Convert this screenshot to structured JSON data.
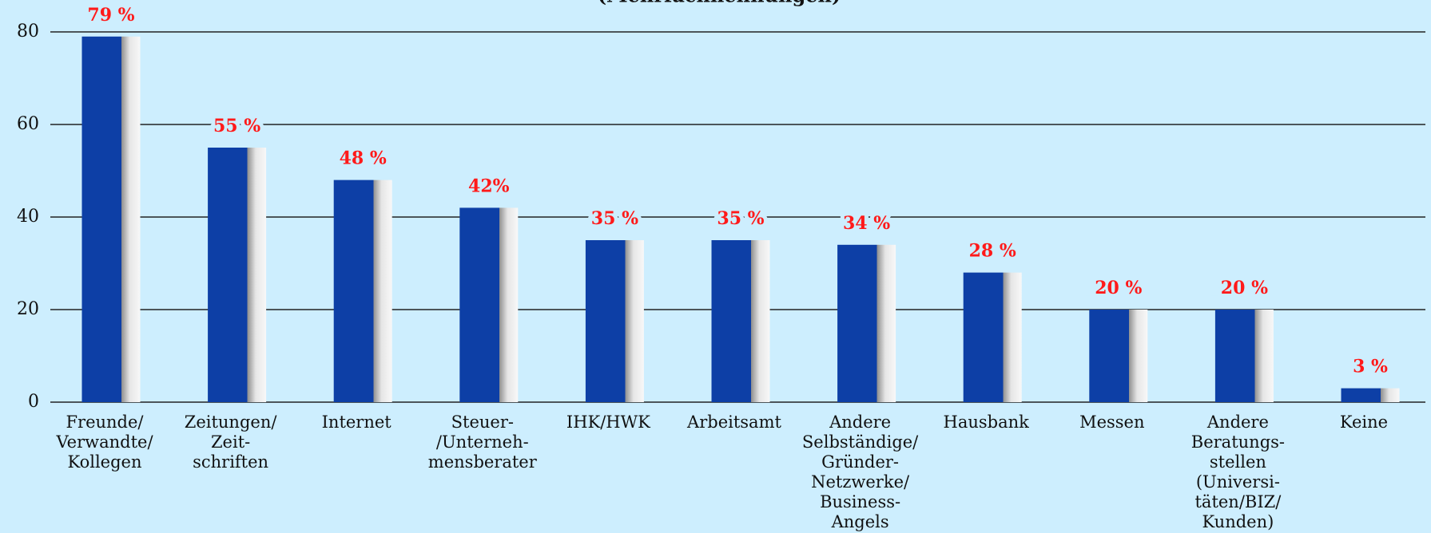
{
  "chart_data": {
    "type": "bar",
    "subtitle": "(Mehrfachnennungen)",
    "categories": [
      "Freunde/\nVerwandte/\nKollegen",
      "Zeitungen/\nZeit-\nschriften",
      "Internet",
      "Steuer-\n/Unterneh-\nmensberater",
      "IHK/HWK",
      "Arbeitsamt",
      "Andere\nSelbständige/\nGründer-\nNetzwerke/\nBusiness-\nAngels",
      "Hausbank",
      "Messen",
      "Andere\nBeratungs-\nstellen\n(Universi-\ntäten/BIZ/\nKunden)",
      "Keine"
    ],
    "values": [
      79,
      55,
      48,
      42,
      35,
      35,
      34,
      28,
      20,
      20,
      3
    ],
    "value_labels": [
      "79 %",
      "55 %",
      "48 %",
      "42%",
      "35 %",
      "35 %",
      "34 %",
      "28 %",
      "20 %",
      "20 %",
      "3 %"
    ],
    "color": "#0d3fa6",
    "label_color": "#ff1a1a",
    "ylim": [
      0,
      80
    ],
    "yticks": [
      0,
      20,
      40,
      60,
      80
    ],
    "grid": true
  }
}
